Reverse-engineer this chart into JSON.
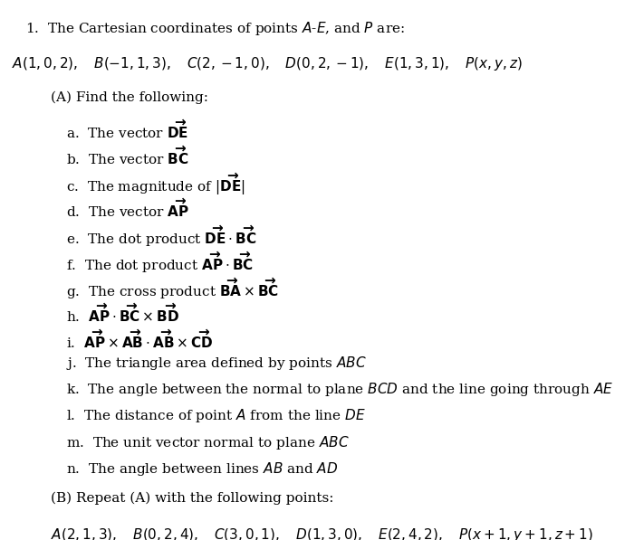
{
  "title_line": "1.  The Cartesian coordinates of points $A$-$E$, and $P$ are:",
  "coords_line": "$A(1, 0, 2),\\quad B(-1, 1, 3),\\quad C(2, -1, 0),\\quad D(0, 2, -1),\\quad E(1, 3, 1),\\quad P(x, y, z)$",
  "section_A": "(A) Find the following:",
  "items": [
    "a.  The vector $\\mathbf{\\overrightarrow{DE}}$",
    "b.  The vector $\\mathbf{\\overrightarrow{BC}}$",
    "c.  The magnitude of $|\\mathbf{\\overrightarrow{DE}}|$",
    "d.  The vector $\\mathbf{\\overrightarrow{AP}}$",
    "e.  The dot product $\\mathbf{\\overrightarrow{DE}}\\cdot\\mathbf{\\overrightarrow{BC}}$",
    "f.  The dot product $\\mathbf{\\overrightarrow{AP}}\\cdot\\mathbf{\\overrightarrow{BC}}$",
    "g.  The cross product $\\mathbf{\\overrightarrow{BA}}\\times\\mathbf{\\overrightarrow{BC}}$",
    "h.  $\\mathbf{\\overrightarrow{AP}}\\cdot\\mathbf{\\overrightarrow{BC}}\\times\\mathbf{\\overrightarrow{BD}}$",
    "i.  $\\mathbf{\\overrightarrow{AP}}\\times\\mathbf{\\overrightarrow{AB}}\\cdot\\mathbf{\\overrightarrow{AB}}\\times\\mathbf{\\overrightarrow{CD}}$",
    "j.  The triangle area defined by points $ABC$",
    "k.  The angle between the normal to plane $BCD$ and the line going through $AE$",
    "l.  The distance of point $A$ from the line $DE$",
    "m.  The unit vector normal to plane $ABC$",
    "n.  The angle between lines $AB$ and $AD$"
  ],
  "section_B": "(B) Repeat (A) with the following points:",
  "coords_line_B": "$A(2, 1, 3),\\quad B(0, 2, 4),\\quad C(3, 0, 1),\\quad D(1,3,0),\\quad E(2, 4, 2),\\quad P(x+1, y+1, z+1)$",
  "bg_color": "#ffffff",
  "text_color": "#000000",
  "fontsize": 11
}
